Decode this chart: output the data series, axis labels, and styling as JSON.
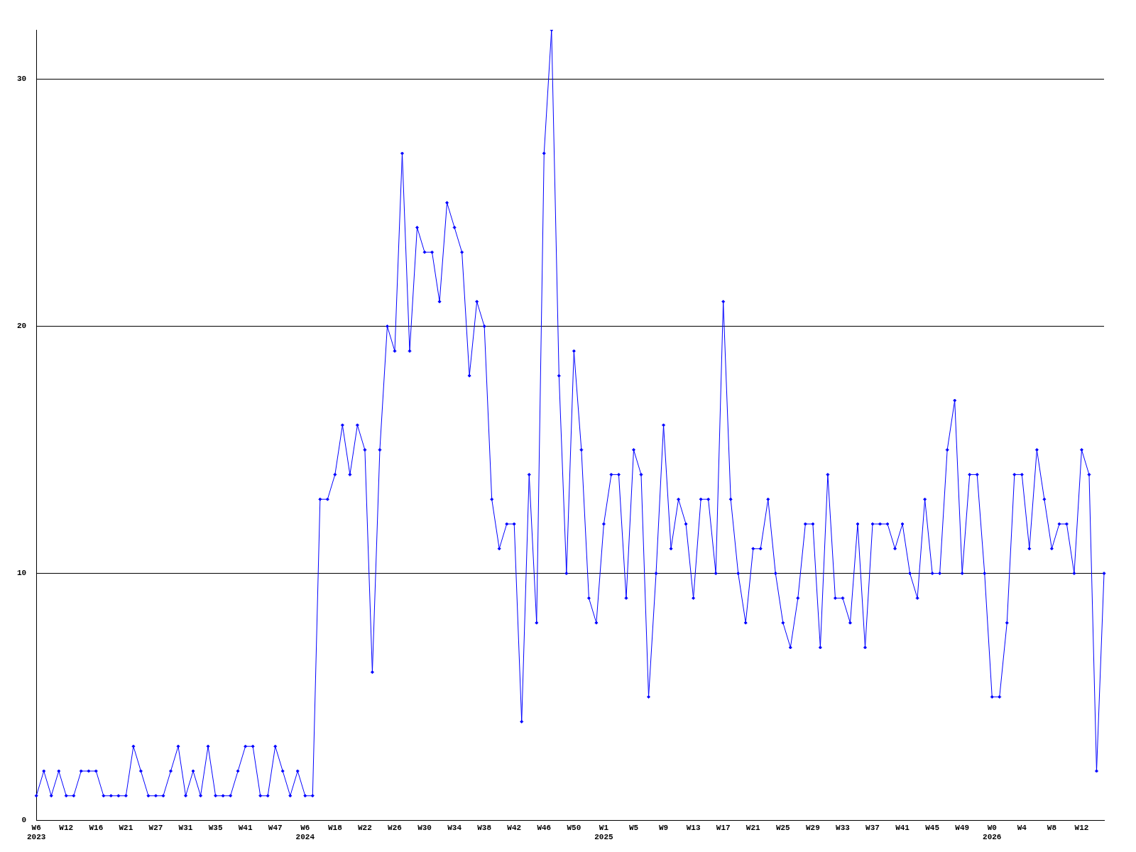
{
  "chart_data": {
    "type": "line",
    "categories": [
      "W6\n2023",
      null,
      null,
      null,
      "W12",
      null,
      null,
      null,
      "W16",
      null,
      null,
      null,
      "W21",
      null,
      null,
      null,
      "W27",
      null,
      null,
      null,
      "W31",
      null,
      null,
      null,
      "W35",
      null,
      null,
      null,
      "W41",
      null,
      null,
      null,
      "W47",
      null,
      null,
      null,
      "W6\n2024",
      null,
      null,
      null,
      "W18",
      null,
      null,
      null,
      "W22",
      null,
      null,
      null,
      "W26",
      null,
      null,
      null,
      "W30",
      null,
      null,
      null,
      "W34",
      null,
      null,
      null,
      "W38",
      null,
      null,
      null,
      "W42",
      null,
      null,
      null,
      "W46",
      null,
      null,
      null,
      "W50",
      null,
      null,
      null,
      "W1\n2025",
      null,
      null,
      null,
      "W5",
      null,
      null,
      null,
      "W9",
      null,
      null,
      null,
      "W13",
      null,
      null,
      null,
      "W17",
      null,
      null,
      null,
      "W21",
      null,
      null,
      null,
      "W25",
      null,
      null,
      null,
      "W29",
      null,
      null,
      null,
      "W33",
      null,
      null,
      null,
      "W37",
      null,
      null,
      null,
      "W41",
      null,
      null,
      null,
      "W45",
      null,
      null,
      null,
      "W49",
      null,
      null,
      null,
      "W0\n2026",
      null,
      null,
      null,
      "W4",
      null,
      null,
      null,
      "W8",
      null,
      null,
      null,
      "W12",
      null,
      null,
      null
    ],
    "series": [
      {
        "color": "#0000ff",
        "values": [
          1,
          2,
          1,
          2,
          1,
          1,
          2,
          2,
          2,
          1,
          1,
          1,
          1,
          3,
          2,
          1,
          1,
          1,
          2,
          3,
          1,
          2,
          1,
          3,
          1,
          1,
          1,
          2,
          3,
          3,
          1,
          1,
          3,
          2,
          1,
          2,
          1,
          1,
          13,
          13,
          14,
          16,
          14,
          16,
          15,
          6,
          15,
          20,
          19,
          27,
          19,
          24,
          23,
          23,
          21,
          25,
          24,
          23,
          18,
          21,
          20,
          13,
          11,
          12,
          12,
          4,
          14,
          8,
          27,
          32,
          18,
          10,
          19,
          15,
          9,
          8,
          12,
          14,
          14,
          9,
          15,
          14,
          5,
          10,
          16,
          11,
          13,
          12,
          9,
          13,
          13,
          10,
          21,
          13,
          10,
          8,
          11,
          11,
          13,
          10,
          8,
          7,
          9,
          12,
          12,
          7,
          14,
          9,
          9,
          8,
          12,
          7,
          12,
          12,
          12,
          11,
          12,
          10,
          9,
          13,
          10,
          10,
          15,
          17,
          10,
          14,
          14,
          10,
          5,
          5,
          8,
          14,
          14,
          11,
          15,
          13,
          11,
          12,
          12,
          10,
          15,
          14,
          2,
          10
        ]
      }
    ],
    "ylim": [
      0,
      32
    ],
    "yticks": [
      0,
      10,
      20,
      30
    ],
    "grid": "y",
    "legend": false,
    "marker": "diamond",
    "line_style": "solid"
  }
}
